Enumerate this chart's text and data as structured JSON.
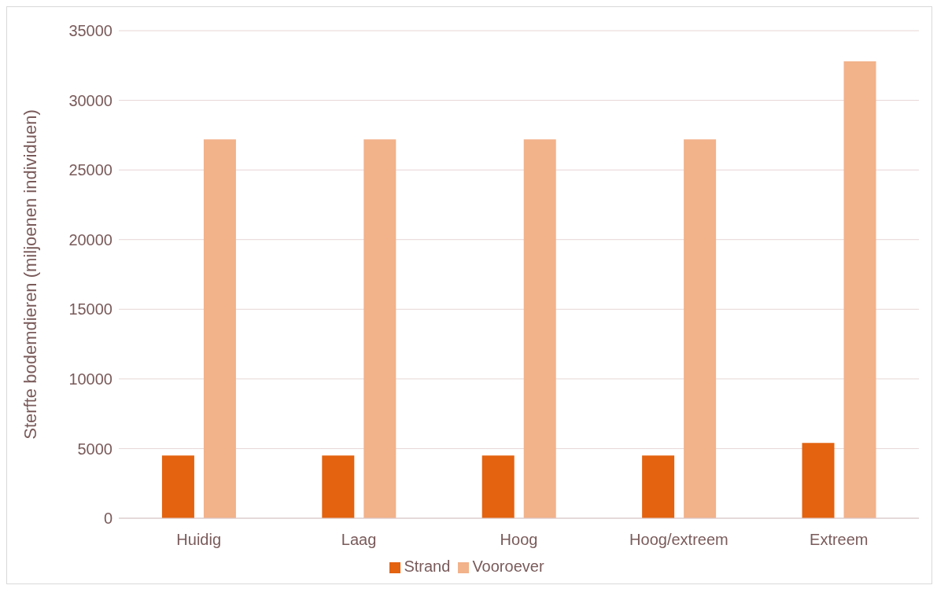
{
  "chart_data": {
    "type": "bar",
    "ylabel": "Sterfte bodemdieren (miljoenen individuen)",
    "categories": [
      "Huidig",
      "Laag",
      "Hoog",
      "Hoog/extreem",
      "Extreem"
    ],
    "series": [
      {
        "name": "Strand",
        "color": "#e36310",
        "values": [
          4500,
          4500,
          4500,
          4500,
          5400
        ]
      },
      {
        "name": "Vooroever",
        "color": "#f2b28a",
        "values": [
          27200,
          27200,
          27200,
          27200,
          32800
        ]
      }
    ],
    "ylim": [
      0,
      35000
    ],
    "yticks": [
      0,
      5000,
      10000,
      15000,
      20000,
      25000,
      30000,
      35000
    ],
    "grid": "y",
    "legend": "bottom"
  }
}
